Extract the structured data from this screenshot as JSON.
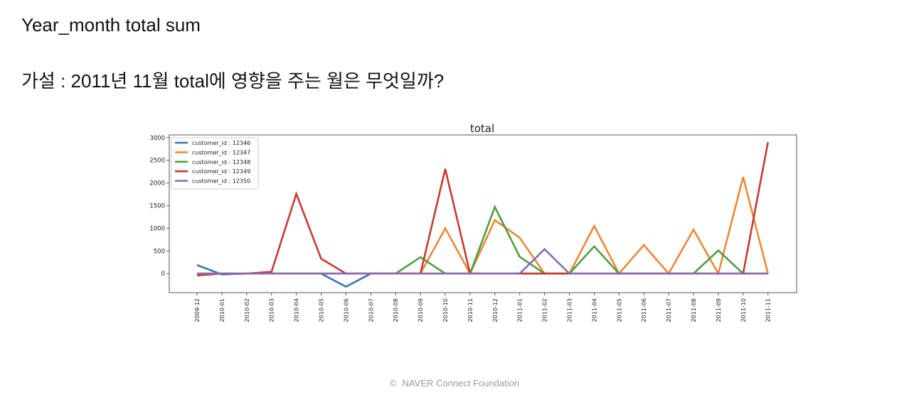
{
  "slide": {
    "title": "Year_month total sum",
    "hypothesis": "가설 : 2011년 11월 total에 영향을 주는 월은 무엇일까?",
    "footer_symbol": "©",
    "footer": "NAVER Connect Foundation"
  },
  "chart_data": {
    "type": "line",
    "title": "total",
    "xlabel": "",
    "ylabel": "",
    "categories": [
      "2009-12",
      "2010-01",
      "2010-02",
      "2010-03",
      "2010-04",
      "2010-05",
      "2010-06",
      "2010-07",
      "2010-08",
      "2010-09",
      "2010-10",
      "2010-11",
      "2010-12",
      "2011-01",
      "2011-02",
      "2011-03",
      "2011-04",
      "2011-05",
      "2011-06",
      "2011-07",
      "2011-08",
      "2011-09",
      "2011-10",
      "2011-11"
    ],
    "ylim": [
      -420,
      3060
    ],
    "yticks": [
      0,
      500,
      1000,
      1500,
      2000,
      2500,
      3000
    ],
    "legend_position": "top-left",
    "grid": false,
    "series": [
      {
        "name": "customer_id : 12346",
        "color": "#3b75af",
        "values": [
          190,
          -20,
          0,
          0,
          0,
          0,
          -290,
          0,
          0,
          0,
          0,
          0,
          0,
          0,
          0,
          0,
          0,
          0,
          0,
          0,
          0,
          0,
          0,
          0
        ]
      },
      {
        "name": "customer_id : 12347",
        "color": "#ef8636",
        "values": [
          0,
          0,
          0,
          0,
          0,
          0,
          0,
          0,
          0,
          0,
          1000,
          0,
          1180,
          790,
          0,
          0,
          1050,
          0,
          630,
          0,
          970,
          0,
          2130,
          0
        ]
      },
      {
        "name": "customer_id : 12348",
        "color": "#519e3e",
        "values": [
          0,
          0,
          0,
          0,
          0,
          0,
          0,
          0,
          0,
          360,
          0,
          0,
          1470,
          370,
          0,
          0,
          600,
          0,
          0,
          0,
          0,
          510,
          0,
          0
        ]
      },
      {
        "name": "customer_id : 12349",
        "color": "#c53a32",
        "values": [
          -40,
          0,
          0,
          40,
          1760,
          330,
          0,
          0,
          0,
          0,
          2310,
          0,
          0,
          0,
          0,
          0,
          0,
          0,
          0,
          0,
          0,
          0,
          0,
          2900
        ]
      },
      {
        "name": "customer_id : 12350",
        "color": "#8d69b8",
        "values": [
          0,
          0,
          0,
          0,
          0,
          0,
          0,
          0,
          0,
          0,
          0,
          0,
          0,
          0,
          540,
          0,
          0,
          0,
          0,
          0,
          0,
          0,
          0,
          0
        ]
      }
    ]
  }
}
